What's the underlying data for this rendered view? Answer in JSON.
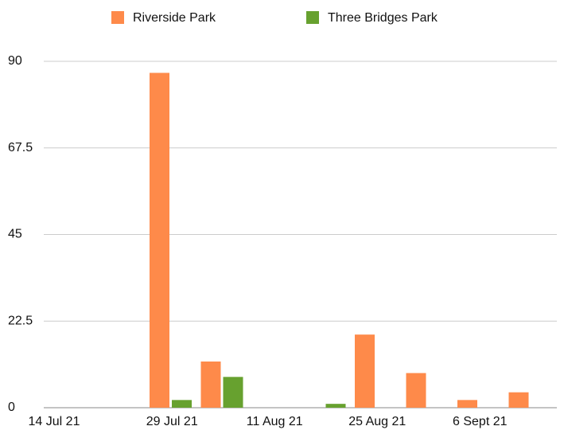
{
  "chart_data": {
    "type": "bar",
    "categories": [
      "14 Jul 21",
      null,
      "29 Jul 21",
      null,
      "11 Aug 21",
      null,
      "25 Aug 21",
      null,
      "6 Sept 21",
      null
    ],
    "series": [
      {
        "name": "Riverside Park",
        "color": "#fe8a4a",
        "values": [
          0,
          0,
          87,
          12,
          0,
          0,
          19,
          9,
          2,
          4
        ]
      },
      {
        "name": "Three Bridges Park",
        "color": "#67a12f",
        "values": [
          0,
          0,
          2,
          8,
          0,
          1,
          0,
          0,
          0,
          0
        ]
      }
    ],
    "ylim": [
      0,
      90
    ],
    "yticks": [
      0,
      22.5,
      45,
      67.5,
      90
    ],
    "grid": true,
    "legend": "top"
  }
}
